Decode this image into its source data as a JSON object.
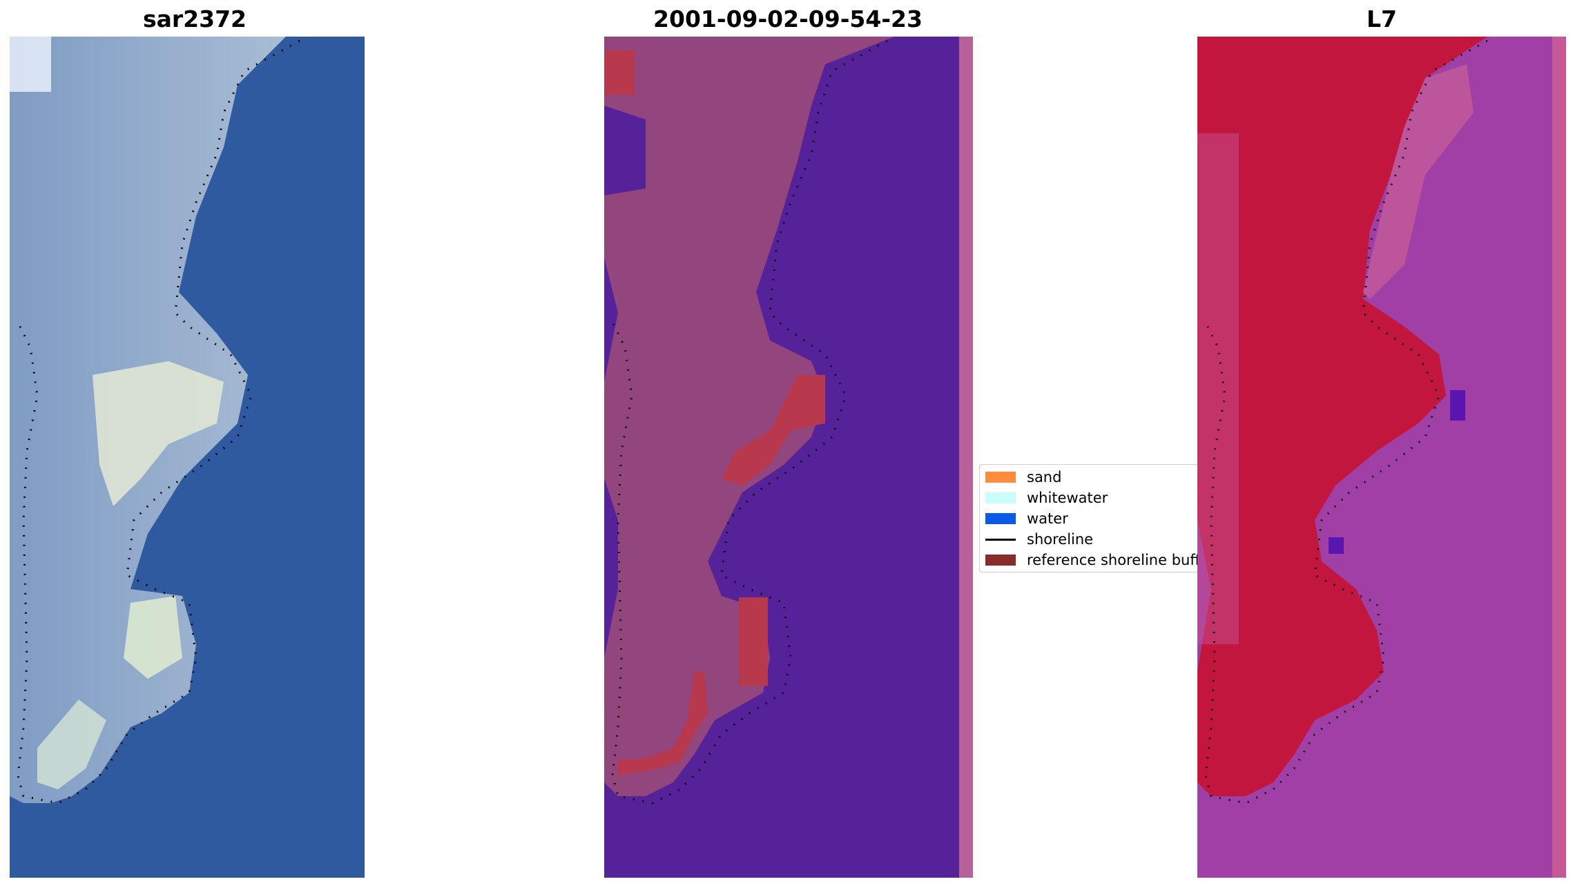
{
  "panels": {
    "left": {
      "title": "sar2372"
    },
    "middle": {
      "title": "2001-09-02-09-54-23"
    },
    "right": {
      "title": "L7"
    }
  },
  "legend": {
    "items": [
      {
        "label": "sand",
        "color": "#ff8c3c"
      },
      {
        "label": "whitewater",
        "color": "#c8fffa"
      },
      {
        "label": "water",
        "color": "#0a5ae8"
      },
      {
        "label": "shoreline",
        "color": "#000000"
      },
      {
        "label": "reference shoreline buff",
        "color": "#8b2a2a"
      }
    ]
  },
  "colors": {
    "rgb_water": "#2f5aa0",
    "rgb_land": "#8fa8c8",
    "rgb_bright": "#e8eedc",
    "class_water": "#55229a",
    "class_land": "#93467d",
    "class_buffer": "#b8384e",
    "class_edge": "#b8609a",
    "l7_land": "#c2163e",
    "l7_water": "#a040a6",
    "l7_edge": "#c45a9a"
  }
}
